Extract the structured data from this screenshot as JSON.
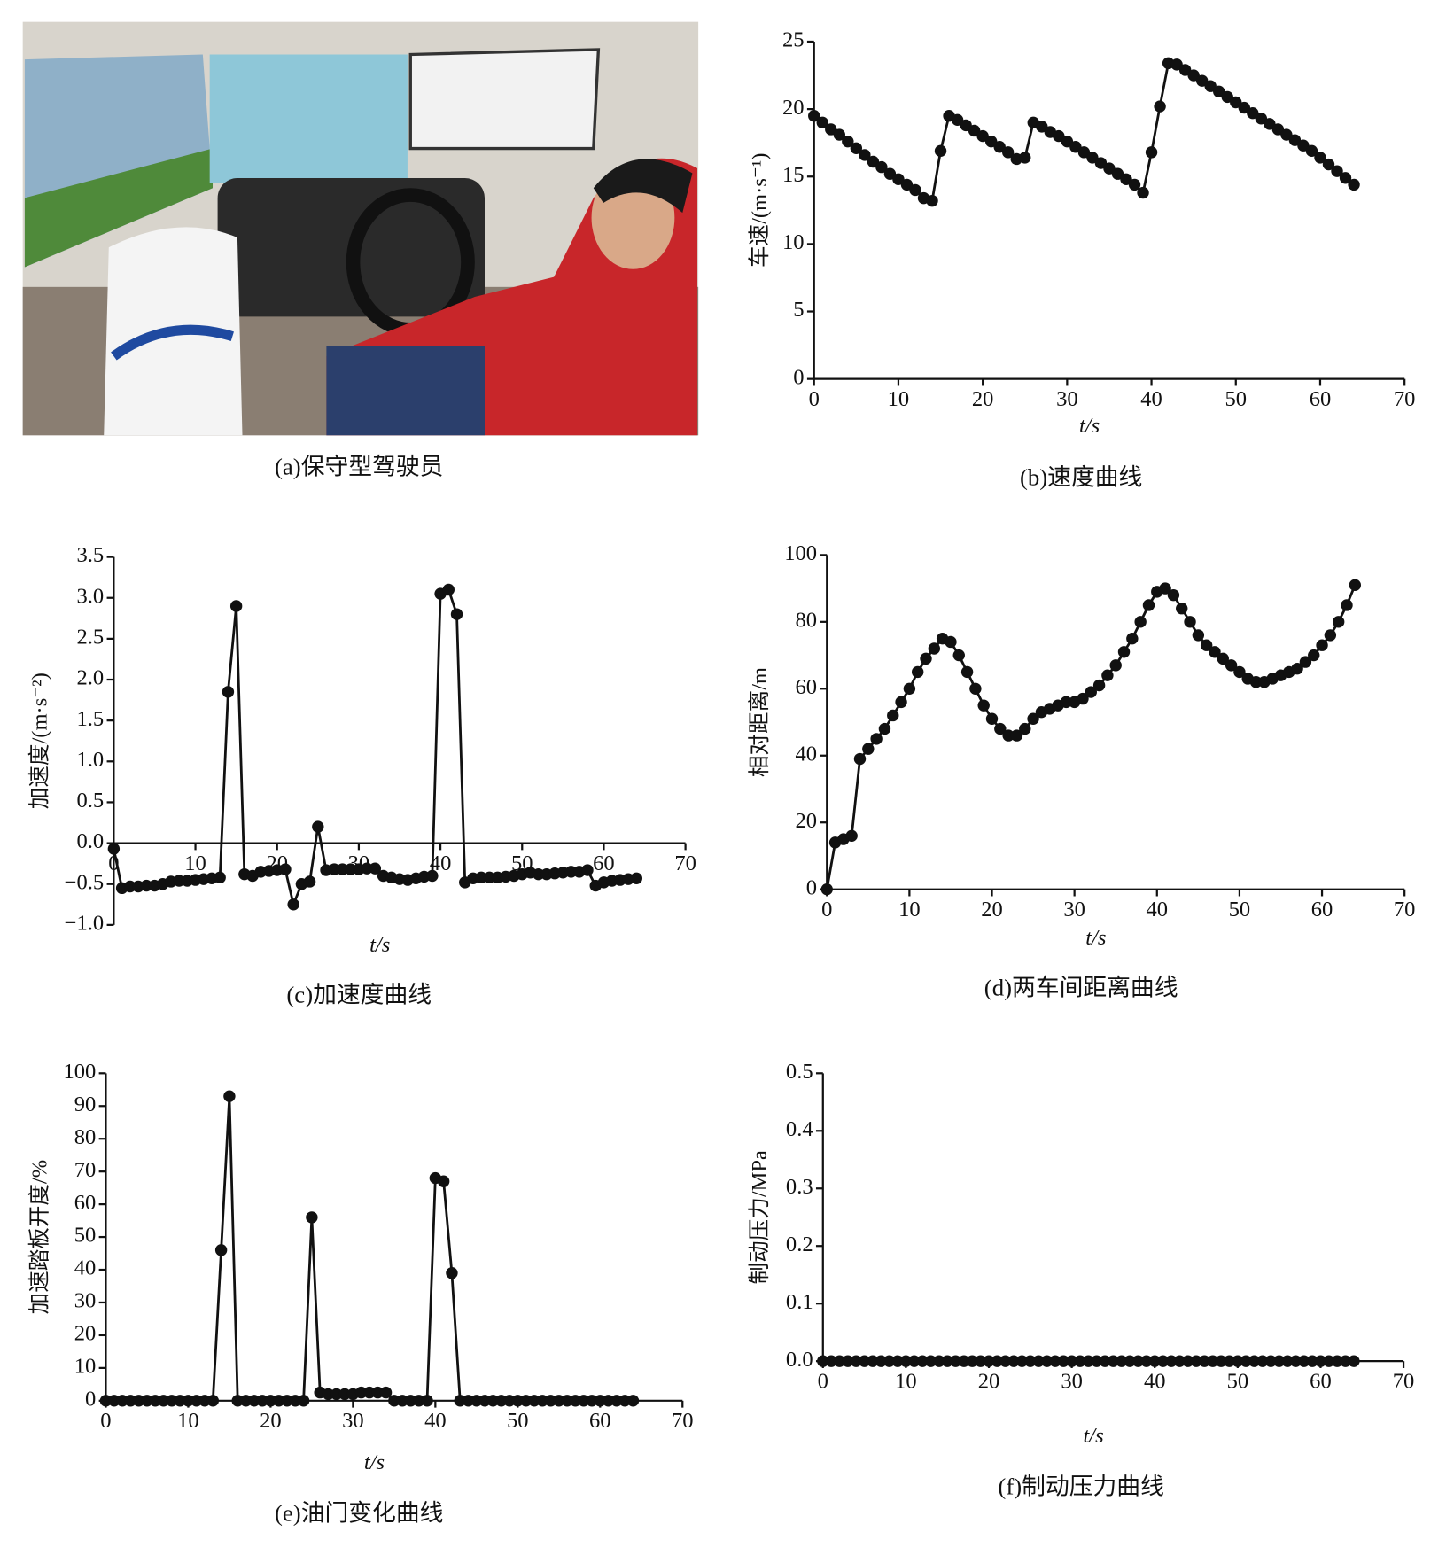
{
  "figure_a": {
    "caption": "(a)保守型驾驶员"
  },
  "chart_data": [
    {
      "type": "line",
      "caption": "(b)速度曲线",
      "ylabel": "车速/(m·s⁻¹)",
      "xlabel": "t/s",
      "color": "#111111",
      "x": [
        0,
        1,
        2,
        3,
        4,
        5,
        6,
        7,
        8,
        9,
        10,
        11,
        12,
        13,
        14,
        15,
        16,
        17,
        18,
        19,
        20,
        21,
        22,
        23,
        24,
        25,
        26,
        27,
        28,
        29,
        30,
        31,
        32,
        33,
        34,
        35,
        36,
        37,
        38,
        39,
        40,
        41,
        42,
        43,
        44,
        45,
        46,
        47,
        48,
        49,
        50,
        51,
        52,
        53,
        54,
        55,
        56,
        57,
        58,
        59,
        60,
        61,
        62,
        63,
        64
      ],
      "values": [
        19.5,
        19.0,
        18.5,
        18.1,
        17.6,
        17.1,
        16.6,
        16.1,
        15.7,
        15.2,
        14.8,
        14.4,
        14.0,
        13.4,
        13.2,
        16.9,
        19.5,
        19.2,
        18.8,
        18.4,
        18.0,
        17.6,
        17.2,
        16.8,
        16.3,
        16.4,
        19.0,
        18.7,
        18.3,
        18.0,
        17.6,
        17.2,
        16.8,
        16.4,
        16.0,
        15.6,
        15.2,
        14.8,
        14.4,
        13.8,
        16.8,
        20.2,
        23.4,
        23.3,
        22.9,
        22.5,
        22.1,
        21.7,
        21.3,
        20.9,
        20.5,
        20.1,
        19.7,
        19.3,
        18.9,
        18.5,
        18.1,
        17.7,
        17.3,
        16.9,
        16.4,
        15.9,
        15.4,
        14.9,
        14.4
      ],
      "xlim": [
        0,
        70
      ],
      "xticks": [
        0,
        10,
        20,
        30,
        40,
        50,
        60,
        70
      ],
      "ylim": [
        0,
        25
      ],
      "yticks": [
        0,
        5,
        10,
        15,
        20,
        25
      ]
    },
    {
      "type": "line",
      "caption": "(c)加速度曲线",
      "ylabel": "加速度/(m·s⁻²)",
      "xlabel": "t/s",
      "color": "#111111",
      "x": [
        0,
        1,
        2,
        3,
        4,
        5,
        6,
        7,
        8,
        9,
        10,
        11,
        12,
        13,
        14,
        15,
        16,
        17,
        18,
        19,
        20,
        21,
        22,
        23,
        24,
        25,
        26,
        27,
        28,
        29,
        30,
        31,
        32,
        33,
        34,
        35,
        36,
        37,
        38,
        39,
        40,
        41,
        42,
        43,
        44,
        45,
        46,
        47,
        48,
        49,
        50,
        51,
        52,
        53,
        54,
        55,
        56,
        57,
        58,
        59,
        60,
        61,
        62,
        63,
        64
      ],
      "values": [
        -0.07,
        -0.55,
        -0.53,
        -0.53,
        -0.52,
        -0.52,
        -0.5,
        -0.47,
        -0.46,
        -0.46,
        -0.45,
        -0.44,
        -0.43,
        -0.42,
        1.85,
        2.9,
        -0.38,
        -0.4,
        -0.35,
        -0.34,
        -0.33,
        -0.32,
        -0.75,
        -0.5,
        -0.47,
        0.2,
        -0.33,
        -0.32,
        -0.32,
        -0.32,
        -0.32,
        -0.31,
        -0.31,
        -0.4,
        -0.42,
        -0.44,
        -0.45,
        -0.43,
        -0.41,
        -0.4,
        3.05,
        3.1,
        2.8,
        -0.48,
        -0.43,
        -0.42,
        -0.42,
        -0.42,
        -0.41,
        -0.4,
        -0.38,
        -0.36,
        -0.38,
        -0.38,
        -0.37,
        -0.36,
        -0.35,
        -0.35,
        -0.33,
        -0.52,
        -0.48,
        -0.46,
        -0.45,
        -0.44,
        -0.43
      ],
      "xlim": [
        0,
        70
      ],
      "xticks": [
        0,
        10,
        20,
        30,
        40,
        50,
        60,
        70
      ],
      "ylim": [
        -1,
        3.5
      ],
      "yticks": [
        {
          "value": -1,
          "label": "−1.0"
        },
        {
          "value": -0.5,
          "label": "−0.5"
        },
        {
          "value": 0,
          "label": "0.0"
        },
        0.5,
        {
          "value": 1,
          "label": "1.0"
        },
        1.5,
        {
          "value": 2,
          "label": "2.0"
        },
        2.5,
        {
          "value": 3,
          "label": "3.0"
        },
        3.5
      ]
    },
    {
      "type": "line",
      "caption": "(d)两车间距离曲线",
      "ylabel": "相对距离/m",
      "xlabel": "t/s",
      "color": "#111111",
      "x": [
        0,
        1,
        2,
        3,
        4,
        5,
        6,
        7,
        8,
        9,
        10,
        11,
        12,
        13,
        14,
        15,
        16,
        17,
        18,
        19,
        20,
        21,
        22,
        23,
        24,
        25,
        26,
        27,
        28,
        29,
        30,
        31,
        32,
        33,
        34,
        35,
        36,
        37,
        38,
        39,
        40,
        41,
        42,
        43,
        44,
        45,
        46,
        47,
        48,
        49,
        50,
        51,
        52,
        53,
        54,
        55,
        56,
        57,
        58,
        59,
        60,
        61,
        62,
        63,
        64
      ],
      "values": [
        0,
        14,
        15,
        16,
        39,
        42,
        45,
        48,
        52,
        56,
        60,
        65,
        69,
        72,
        75,
        74,
        70,
        65,
        60,
        55,
        51,
        48,
        46,
        46,
        48,
        51,
        53,
        54,
        55,
        56,
        56,
        57,
        59,
        61,
        64,
        67,
        71,
        75,
        80,
        85,
        89,
        90,
        88,
        84,
        80,
        76,
        73,
        71,
        69,
        67,
        65,
        63,
        62,
        62,
        63,
        64,
        65,
        66,
        68,
        70,
        73,
        76,
        80,
        85,
        91
      ],
      "xlim": [
        0,
        70
      ],
      "xticks": [
        0,
        10,
        20,
        30,
        40,
        50,
        60,
        70
      ],
      "ylim": [
        0,
        100
      ],
      "yticks": [
        0,
        20,
        40,
        60,
        80,
        100
      ]
    },
    {
      "type": "line",
      "caption": "(e)油门变化曲线",
      "ylabel": "加速踏板开度/%",
      "xlabel": "t/s",
      "color": "#111111",
      "x": [
        0,
        1,
        2,
        3,
        4,
        5,
        6,
        7,
        8,
        9,
        10,
        11,
        12,
        13,
        14,
        15,
        16,
        17,
        18,
        19,
        20,
        21,
        22,
        23,
        24,
        25,
        26,
        27,
        28,
        29,
        30,
        31,
        32,
        33,
        34,
        35,
        36,
        37,
        38,
        39,
        40,
        41,
        42,
        43,
        44,
        45,
        46,
        47,
        48,
        49,
        50,
        51,
        52,
        53,
        54,
        55,
        56,
        57,
        58,
        59,
        60,
        61,
        62,
        63,
        64
      ],
      "values": [
        0,
        0,
        0,
        0,
        0,
        0,
        0,
        0,
        0,
        0,
        0,
        0,
        0,
        0,
        46,
        93,
        0,
        0,
        0,
        0,
        0,
        0,
        0,
        0,
        0,
        56,
        2.5,
        2,
        2,
        2,
        2,
        2.5,
        2.5,
        2.5,
        2.5,
        0,
        0,
        0,
        0,
        0,
        68,
        67,
        39,
        0,
        0,
        0,
        0,
        0,
        0,
        0,
        0,
        0,
        0,
        0,
        0,
        0,
        0,
        0,
        0,
        0,
        0,
        0,
        0,
        0,
        0
      ],
      "xlim": [
        0,
        70
      ],
      "xticks": [
        0,
        10,
        20,
        30,
        40,
        50,
        60,
        70
      ],
      "ylim": [
        0,
        100
      ],
      "yticks": [
        0,
        10,
        20,
        30,
        40,
        50,
        60,
        70,
        80,
        90,
        100
      ]
    },
    {
      "type": "line",
      "caption": "(f)制动压力曲线",
      "ylabel": "制动压力/MPa",
      "xlabel": "t/s",
      "color": "#111111",
      "x": [
        0,
        1,
        2,
        3,
        4,
        5,
        6,
        7,
        8,
        9,
        10,
        11,
        12,
        13,
        14,
        15,
        16,
        17,
        18,
        19,
        20,
        21,
        22,
        23,
        24,
        25,
        26,
        27,
        28,
        29,
        30,
        31,
        32,
        33,
        34,
        35,
        36,
        37,
        38,
        39,
        40,
        41,
        42,
        43,
        44,
        45,
        46,
        47,
        48,
        49,
        50,
        51,
        52,
        53,
        54,
        55,
        56,
        57,
        58,
        59,
        60,
        61,
        62,
        63,
        64
      ],
      "values": [
        0,
        0,
        0,
        0,
        0,
        0,
        0,
        0,
        0,
        0,
        0,
        0,
        0,
        0,
        0,
        0,
        0,
        0,
        0,
        0,
        0,
        0,
        0,
        0,
        0,
        0,
        0,
        0,
        0,
        0,
        0,
        0,
        0,
        0,
        0,
        0,
        0,
        0,
        0,
        0,
        0,
        0,
        0,
        0,
        0,
        0,
        0,
        0,
        0,
        0,
        0,
        0,
        0,
        0,
        0,
        0,
        0,
        0,
        0,
        0,
        0,
        0,
        0,
        0,
        0
      ],
      "xlim": [
        0,
        70
      ],
      "xticks": [
        0,
        10,
        20,
        30,
        40,
        50,
        60,
        70
      ],
      "ylim": [
        0,
        0.5
      ],
      "yticks": [
        {
          "value": 0,
          "label": "0.0"
        },
        0.1,
        0.2,
        0.3,
        0.4,
        0.5
      ]
    }
  ]
}
